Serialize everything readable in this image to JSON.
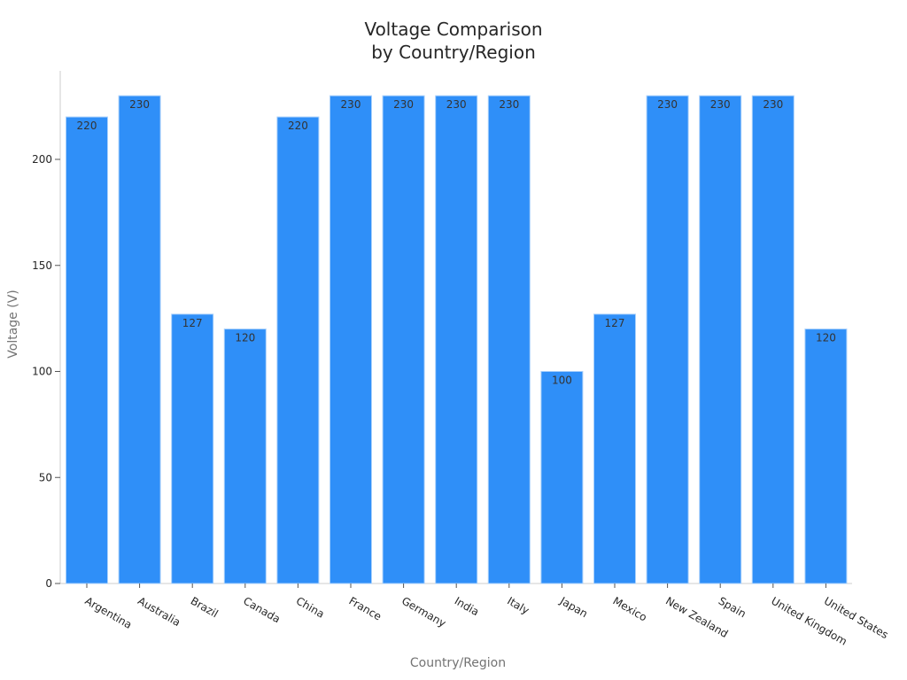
{
  "chart_data": {
    "type": "bar",
    "title": "Voltage Comparison\nby Country/Region",
    "title_lines": [
      "Voltage Comparison",
      "by Country/Region"
    ],
    "xlabel": "Country/Region",
    "ylabel": "Voltage (V)",
    "categories": [
      "Argentina",
      "Australia",
      "Brazil",
      "Canada",
      "China",
      "France",
      "Germany",
      "India",
      "Italy",
      "Japan",
      "Mexico",
      "New Zealand",
      "Spain",
      "United Kingdom",
      "United States"
    ],
    "values": [
      220,
      230,
      127,
      120,
      220,
      230,
      230,
      230,
      230,
      100,
      127,
      230,
      230,
      230,
      120
    ],
    "data_labels": [
      "220",
      "230",
      "127",
      "120",
      "220",
      "230",
      "230",
      "230",
      "230",
      "100",
      "127",
      "230",
      "230",
      "230",
      "120"
    ],
    "yticks": [
      0,
      50,
      100,
      150,
      200
    ],
    "ylim": [
      0,
      240
    ],
    "grid": false,
    "legend": null,
    "bar_color": "#2f8ff8",
    "bar_edge_color": "#a9d0fb",
    "label_color": "#333333",
    "axis_color": "#cccccc"
  }
}
